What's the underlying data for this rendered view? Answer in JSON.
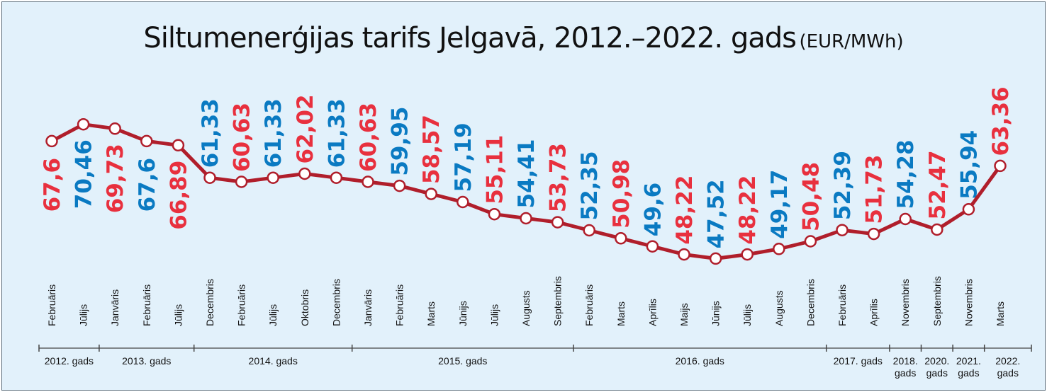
{
  "title": "Siltumenerģijas tarifs Jelgavā,  2012.–2022. gads",
  "unit": "(EUR/MWh)",
  "chart_data": {
    "type": "line",
    "title": "Siltumenerģijas tarifs Jelgavā,  2012.–2022. gads",
    "unit": "(EUR/MWh)",
    "ylim": [
      46,
      72
    ],
    "grid": false,
    "line_color": "#b01e2b",
    "label_colors": {
      "red": "#e8303e",
      "blue": "#0a7ac2"
    },
    "points": [
      {
        "month": "Februāris",
        "value": "67,6",
        "v": 67.6,
        "color": "red"
      },
      {
        "month": "Jūlijs",
        "value": "70,46",
        "v": 70.46,
        "color": "blue"
      },
      {
        "month": "Janvāris",
        "value": "69,73",
        "v": 69.73,
        "color": "red"
      },
      {
        "month": "Februāris",
        "value": "67,6",
        "v": 67.6,
        "color": "blue"
      },
      {
        "month": "Jūlijs",
        "value": "66,89",
        "v": 66.89,
        "color": "red"
      },
      {
        "month": "Decembris",
        "value": "61,33",
        "v": 61.33,
        "color": "blue"
      },
      {
        "month": "Februāris",
        "value": "60,63",
        "v": 60.63,
        "color": "red"
      },
      {
        "month": "Jūlijs",
        "value": "61,33",
        "v": 61.33,
        "color": "blue"
      },
      {
        "month": "Oktobris",
        "value": "62,02",
        "v": 62.02,
        "color": "red"
      },
      {
        "month": "Decembris",
        "value": "61,33",
        "v": 61.33,
        "color": "blue"
      },
      {
        "month": "Janvāris",
        "value": "60,63",
        "v": 60.63,
        "color": "red"
      },
      {
        "month": "Februāris",
        "value": "59,95",
        "v": 59.95,
        "color": "blue"
      },
      {
        "month": "Marts",
        "value": "58,57",
        "v": 58.57,
        "color": "red"
      },
      {
        "month": "Jūnijs",
        "value": "57,19",
        "v": 57.19,
        "color": "blue"
      },
      {
        "month": "Jūlijs",
        "value": "55,11",
        "v": 55.11,
        "color": "red"
      },
      {
        "month": "Augusts",
        "value": "54,41",
        "v": 54.41,
        "color": "blue"
      },
      {
        "month": "Septembris",
        "value": "53,73",
        "v": 53.73,
        "color": "red"
      },
      {
        "month": "Februāris",
        "value": "52,35",
        "v": 52.35,
        "color": "blue"
      },
      {
        "month": "Marts",
        "value": "50,98",
        "v": 50.98,
        "color": "red"
      },
      {
        "month": "Aprīlis",
        "value": "49,6",
        "v": 49.6,
        "color": "blue"
      },
      {
        "month": "Maijs",
        "value": "48,22",
        "v": 48.22,
        "color": "red"
      },
      {
        "month": "Jūnijs",
        "value": "47,52",
        "v": 47.52,
        "color": "blue"
      },
      {
        "month": "Jūlijs",
        "value": "48,22",
        "v": 48.22,
        "color": "red"
      },
      {
        "month": "Augusts",
        "value": "49,17",
        "v": 49.17,
        "color": "blue"
      },
      {
        "month": "Decembris",
        "value": "50,48",
        "v": 50.48,
        "color": "red"
      },
      {
        "month": "Februāris",
        "value": "52,39",
        "v": 52.39,
        "color": "blue"
      },
      {
        "month": "Aprīlis",
        "value": "51,73",
        "v": 51.73,
        "color": "red"
      },
      {
        "month": "Novembris",
        "value": "54,28",
        "v": 54.28,
        "color": "blue"
      },
      {
        "month": "Septembris",
        "value": "52,47",
        "v": 52.47,
        "color": "red"
      },
      {
        "month": "Novembris",
        "value": "55,94",
        "v": 55.94,
        "color": "blue"
      },
      {
        "month": "Marts",
        "value": "63,36",
        "v": 63.36,
        "color": "red"
      }
    ],
    "years": [
      {
        "label": [
          "2012. gads"
        ],
        "from": 0,
        "to": 1
      },
      {
        "label": [
          "2013. gads"
        ],
        "from": 2,
        "to": 4
      },
      {
        "label": [
          "2014. gads"
        ],
        "from": 5,
        "to": 9
      },
      {
        "label": [
          "2015. gads"
        ],
        "from": 10,
        "to": 16
      },
      {
        "label": [
          "2016. gads"
        ],
        "from": 17,
        "to": 24
      },
      {
        "label": [
          "2017. gads"
        ],
        "from": 25,
        "to": 26
      },
      {
        "label": [
          "2018.",
          "gads"
        ],
        "from": 27,
        "to": 27
      },
      {
        "label": [
          "2020.",
          "gads"
        ],
        "from": 28,
        "to": 28
      },
      {
        "label": [
          "2021.",
          "gads"
        ],
        "from": 29,
        "to": 29
      },
      {
        "label": [
          "2022.",
          "gads"
        ],
        "from": 30,
        "to": 30
      }
    ]
  }
}
